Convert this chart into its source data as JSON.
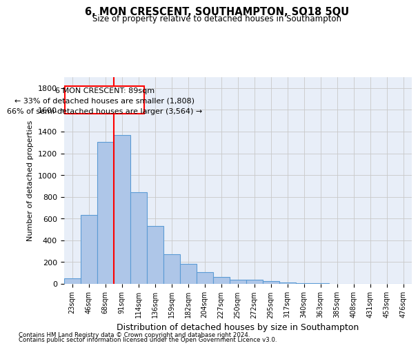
{
  "title": "6, MON CRESCENT, SOUTHAMPTON, SO18 5QU",
  "subtitle": "Size of property relative to detached houses in Southampton",
  "xlabel": "Distribution of detached houses by size in Southampton",
  "ylabel": "Number of detached properties",
  "bar_color": "#aec6e8",
  "bar_edge_color": "#5b9bd5",
  "background_color": "#e8eef8",
  "grid_color": "#c8c8c8",
  "categories": [
    "23sqm",
    "46sqm",
    "68sqm",
    "91sqm",
    "114sqm",
    "136sqm",
    "159sqm",
    "182sqm",
    "204sqm",
    "227sqm",
    "250sqm",
    "272sqm",
    "295sqm",
    "317sqm",
    "340sqm",
    "363sqm",
    "385sqm",
    "408sqm",
    "431sqm",
    "453sqm",
    "476sqm"
  ],
  "values": [
    50,
    635,
    1305,
    1370,
    845,
    530,
    275,
    185,
    105,
    63,
    38,
    35,
    28,
    15,
    8,
    5,
    3,
    2,
    2,
    2,
    2
  ],
  "ylim": [
    0,
    1900
  ],
  "yticks": [
    0,
    200,
    400,
    600,
    800,
    1000,
    1200,
    1400,
    1600,
    1800
  ],
  "vline_index": 3,
  "annotation_title": "6 MON CRESCENT: 89sqm",
  "annotation_line1": "← 33% of detached houses are smaller (1,808)",
  "annotation_line2": "66% of semi-detached houses are larger (3,564) →",
  "footnote1": "Contains HM Land Registry data © Crown copyright and database right 2024.",
  "footnote2": "Contains public sector information licensed under the Open Government Licence v3.0."
}
